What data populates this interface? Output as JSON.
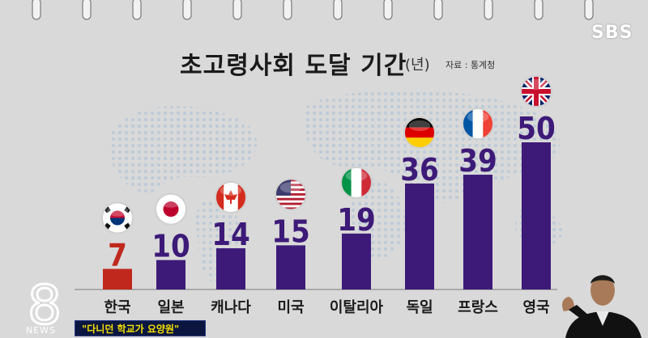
{
  "header": {
    "title": "초고령사회 도달 기간",
    "unit": "(년)",
    "source": "자료 : 통계청",
    "broadcaster": "SBS"
  },
  "ticker": {
    "text": "\"다니던 학교가 요양원\""
  },
  "news_logo": {
    "digit": "8",
    "text": "NEWS"
  },
  "colors": {
    "highlight": "#c0281e",
    "bar": "#3d1a78",
    "background": "#d9d9d9"
  },
  "chart_data": {
    "type": "bar",
    "categories": [
      "한국",
      "일본",
      "캐나다",
      "미국",
      "이탈리아",
      "독일",
      "프랑스",
      "영국"
    ],
    "values": [
      7,
      10,
      14,
      15,
      19,
      36,
      39,
      50
    ],
    "flags": [
      "korea-flag-icon",
      "japan-flag-icon",
      "canada-flag-icon",
      "usa-flag-icon",
      "italy-flag-icon",
      "germany-flag-icon",
      "france-flag-icon",
      "uk-flag-icon"
    ],
    "ylim": [
      0,
      50
    ],
    "grid": false,
    "legend": "none"
  }
}
